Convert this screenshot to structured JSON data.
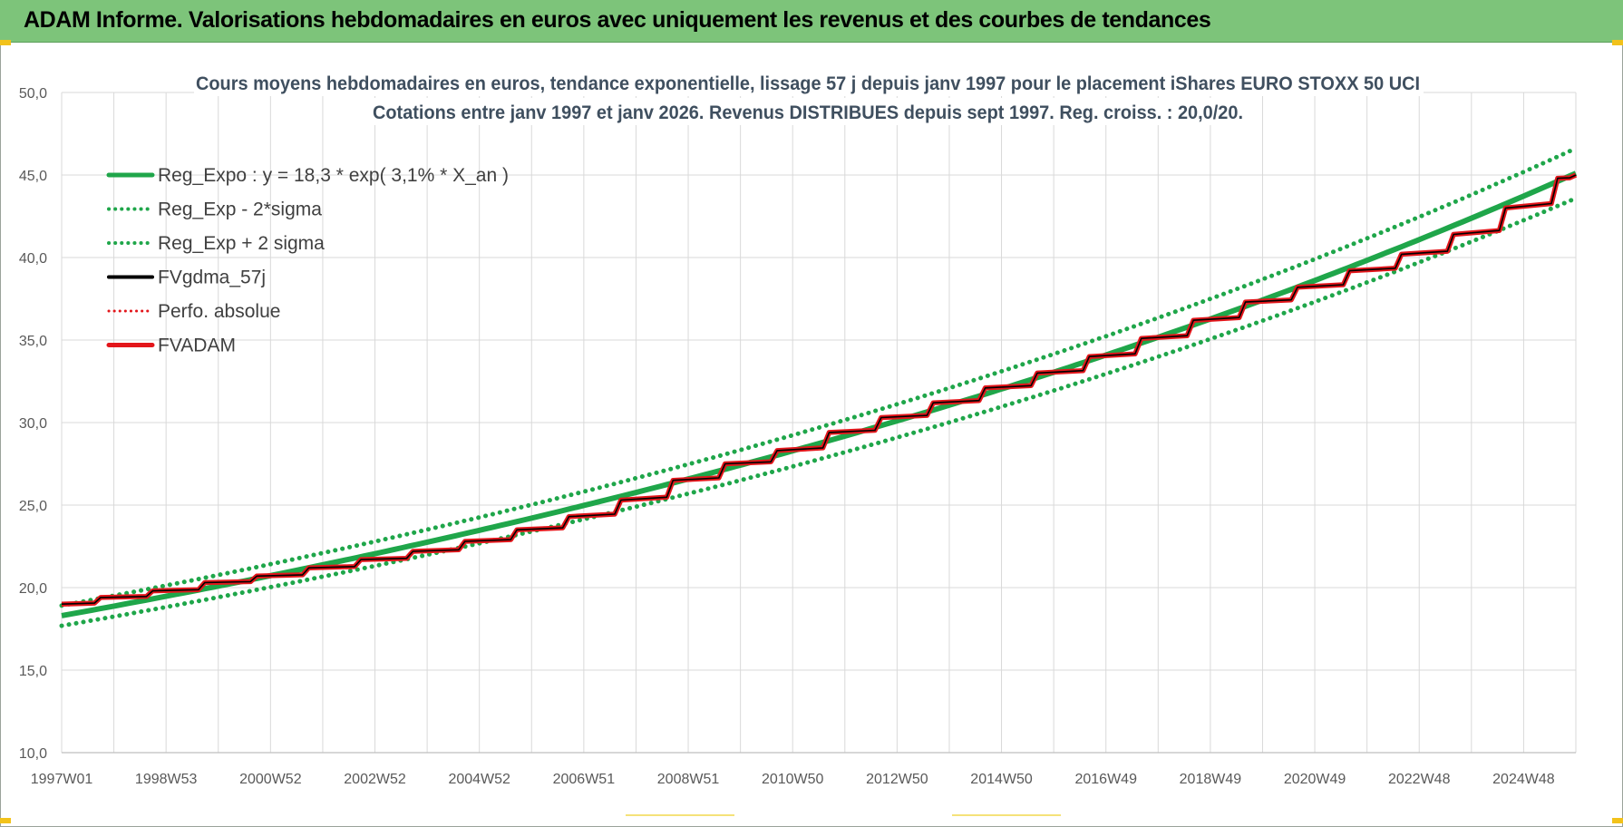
{
  "banner": {
    "title": "ADAM Informe. Valorisations hebdomadaires en euros avec uniquement les revenus et des courbes de tendances"
  },
  "colors": {
    "banner": "#7dc47a",
    "reg_expo": "#1fa64a",
    "fvadam": "#e3161b",
    "fvgdma": "#000000",
    "grid": "#d9d9d9"
  },
  "chart_data": {
    "type": "line",
    "title": "Cours moyens hebdomadaires en euros, tendance exponentielle, lissage 57 j depuis janv 1997  pour le placement iShares EURO STOXX 50 UCI",
    "subtitle": "Cotations entre janv 1997 et janv 2026. Revenus DISTRIBUES depuis sept 1997. Reg. croiss. : 20,0/20.",
    "xlabel": "",
    "ylabel": "",
    "x_tick_labels": [
      "1997W01",
      "1998W53",
      "2000W52",
      "2002W52",
      "2004W52",
      "2006W51",
      "2008W51",
      "2010W50",
      "2012W50",
      "2014W50",
      "2016W49",
      "2018W49",
      "2020W49",
      "2022W48",
      "2024W48"
    ],
    "x_range_years": [
      1997.0,
      2026.1
    ],
    "y_tick_labels": [
      "10,0",
      "15,0",
      "20,0",
      "25,0",
      "30,0",
      "35,0",
      "40,0",
      "45,0",
      "50,0"
    ],
    "ylim": [
      10,
      50
    ],
    "grid": true,
    "legend_position": "top-left",
    "legend": [
      {
        "label": "Reg_Expo : y = 18,3 * exp( 3,1% *  X_an )",
        "style": "solid-green"
      },
      {
        "label": "Reg_Exp - 2*sigma",
        "style": "dotted-green"
      },
      {
        "label": "Reg_Exp + 2 sigma",
        "style": "dotted-green"
      },
      {
        "label": "FVgdma_57j",
        "style": "solid-black"
      },
      {
        "label": "Perfo. absolue",
        "style": "dotted-red"
      },
      {
        "label": "FVADAM",
        "style": "solid-red"
      }
    ],
    "regression": {
      "a": 18.3,
      "rate": 0.031,
      "band_factor": 0.0335
    },
    "fvadam_steps": [
      {
        "x": 1997.0,
        "y": 19.0
      },
      {
        "x": 1997.75,
        "y": 19.4
      },
      {
        "x": 1998.75,
        "y": 19.8
      },
      {
        "x": 1999.75,
        "y": 20.3
      },
      {
        "x": 2000.75,
        "y": 20.7
      },
      {
        "x": 2001.75,
        "y": 21.2
      },
      {
        "x": 2002.75,
        "y": 21.7
      },
      {
        "x": 2003.75,
        "y": 22.2
      },
      {
        "x": 2004.75,
        "y": 22.8
      },
      {
        "x": 2005.75,
        "y": 23.5
      },
      {
        "x": 2006.75,
        "y": 24.3
      },
      {
        "x": 2007.75,
        "y": 25.3
      },
      {
        "x": 2008.75,
        "y": 26.5
      },
      {
        "x": 2009.75,
        "y": 27.5
      },
      {
        "x": 2010.75,
        "y": 28.3
      },
      {
        "x": 2011.75,
        "y": 29.4
      },
      {
        "x": 2012.75,
        "y": 30.3
      },
      {
        "x": 2013.75,
        "y": 31.2
      },
      {
        "x": 2014.75,
        "y": 32.1
      },
      {
        "x": 2015.75,
        "y": 33.0
      },
      {
        "x": 2016.75,
        "y": 34.0
      },
      {
        "x": 2017.75,
        "y": 35.1
      },
      {
        "x": 2018.75,
        "y": 36.2
      },
      {
        "x": 2019.75,
        "y": 37.3
      },
      {
        "x": 2020.75,
        "y": 38.2
      },
      {
        "x": 2021.75,
        "y": 39.2
      },
      {
        "x": 2022.75,
        "y": 40.2
      },
      {
        "x": 2023.75,
        "y": 41.4
      },
      {
        "x": 2024.75,
        "y": 43.0
      },
      {
        "x": 2025.75,
        "y": 44.8
      },
      {
        "x": 2026.1,
        "y": 45.0
      }
    ]
  }
}
